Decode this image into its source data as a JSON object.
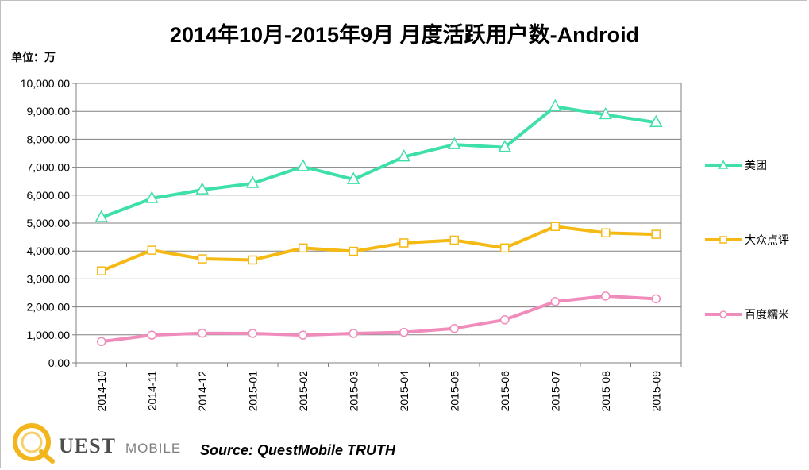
{
  "chart_data": {
    "type": "line",
    "title": "2014年10月-2015年9月 月度活跃用户数-Android",
    "unit_label": "单位：万",
    "xlabel": "",
    "ylabel": "",
    "categories": [
      "2014-10",
      "2014-11",
      "2014-12",
      "2015-01",
      "2015-02",
      "2015-03",
      "2015-04",
      "2015-05",
      "2015-06",
      "2015-07",
      "2015-08",
      "2015-09"
    ],
    "ylim": [
      0,
      10000
    ],
    "yticks": [
      0,
      1000,
      2000,
      3000,
      4000,
      5000,
      6000,
      7000,
      8000,
      9000,
      10000
    ],
    "ytick_labels": [
      "0.00",
      "1,000.00",
      "2,000.00",
      "3,000.00",
      "4,000.00",
      "5,000.00",
      "6,000.00",
      "7,000.00",
      "8,000.00",
      "9,000.00",
      "10,000.00"
    ],
    "grid": true,
    "legend_position": "right",
    "series": [
      {
        "name": "美团",
        "color": "#3ee0a8",
        "marker": "triangle",
        "values": [
          5200,
          5880,
          6190,
          6420,
          7020,
          6560,
          7370,
          7810,
          7710,
          9170,
          8880,
          8600
        ]
      },
      {
        "name": "大众点评",
        "color": "#f5b914",
        "marker": "square",
        "values": [
          3290,
          4030,
          3720,
          3680,
          4110,
          3990,
          4290,
          4390,
          4110,
          4880,
          4650,
          4600
        ]
      },
      {
        "name": "百度糯米",
        "color": "#f08cbb",
        "marker": "circle",
        "values": [
          760,
          990,
          1060,
          1050,
          990,
          1050,
          1090,
          1230,
          1540,
          2190,
          2390,
          2290
        ]
      }
    ]
  },
  "source_text": "Source: QuestMobile TRUTH",
  "logo": {
    "word": "UEST",
    "sub": "MOBILE"
  }
}
